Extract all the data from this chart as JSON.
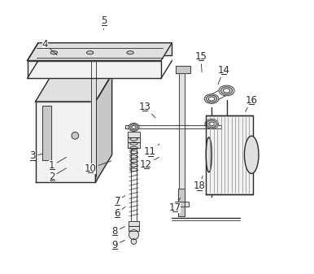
{
  "background_color": "#ffffff",
  "figure_width": 3.86,
  "figure_height": 3.37,
  "dpi": 100,
  "line_color": "#2a2a2a",
  "fill_light": "#f2f2f2",
  "fill_mid": "#e0e0e0",
  "fill_dark": "#c8c8c8",
  "label_fontsize": 8.5,
  "leaders": {
    "1": {
      "txt": [
        0.115,
        0.395
      ],
      "pt": [
        0.175,
        0.43
      ]
    },
    "2": {
      "txt": [
        0.115,
        0.355
      ],
      "pt": [
        0.175,
        0.39
      ]
    },
    "3": {
      "txt": [
        0.045,
        0.43
      ],
      "pt": [
        0.09,
        0.44
      ]
    },
    "4": {
      "txt": [
        0.09,
        0.84
      ],
      "pt": [
        0.14,
        0.795
      ]
    },
    "5": {
      "txt": [
        0.305,
        0.925
      ],
      "pt": [
        0.305,
        0.885
      ]
    },
    "6": {
      "txt": [
        0.355,
        0.22
      ],
      "pt": [
        0.39,
        0.25
      ]
    },
    "7": {
      "txt": [
        0.355,
        0.265
      ],
      "pt": [
        0.39,
        0.29
      ]
    },
    "8": {
      "txt": [
        0.345,
        0.155
      ],
      "pt": [
        0.39,
        0.175
      ]
    },
    "9": {
      "txt": [
        0.345,
        0.105
      ],
      "pt": [
        0.39,
        0.125
      ]
    },
    "10": {
      "txt": [
        0.255,
        0.385
      ],
      "pt": [
        0.34,
        0.415
      ]
    },
    "11": {
      "txt": [
        0.475,
        0.445
      ],
      "pt": [
        0.515,
        0.48
      ]
    },
    "12": {
      "txt": [
        0.46,
        0.4
      ],
      "pt": [
        0.515,
        0.43
      ]
    },
    "13": {
      "txt": [
        0.455,
        0.61
      ],
      "pt": [
        0.5,
        0.565
      ]
    },
    "14": {
      "txt": [
        0.745,
        0.745
      ],
      "pt": [
        0.72,
        0.685
      ]
    },
    "15": {
      "txt": [
        0.66,
        0.795
      ],
      "pt": [
        0.665,
        0.73
      ]
    },
    "16": {
      "txt": [
        0.845,
        0.635
      ],
      "pt": [
        0.82,
        0.585
      ]
    },
    "17": {
      "txt": [
        0.565,
        0.24
      ],
      "pt": [
        0.59,
        0.285
      ]
    },
    "18": {
      "txt": [
        0.655,
        0.32
      ],
      "pt": [
        0.67,
        0.365
      ]
    }
  }
}
